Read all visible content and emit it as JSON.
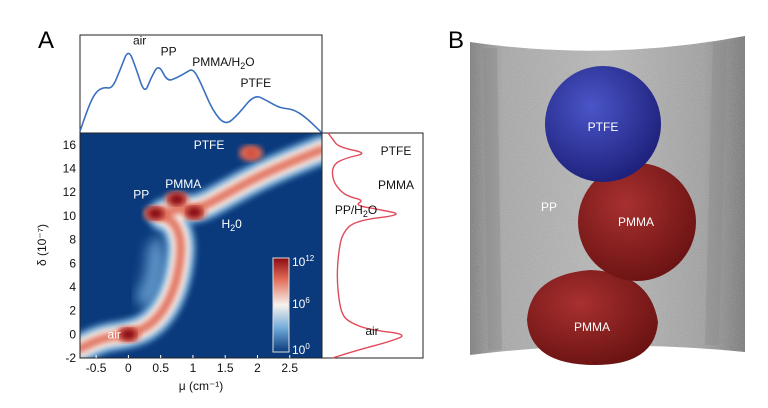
{
  "panels": {
    "a_label": "A",
    "b_label": "B"
  },
  "chart_data": [
    {
      "type": "heatmap",
      "panel": "A",
      "xlabel": "μ (cm⁻¹)",
      "ylabel": "δ (10⁻⁷)",
      "xlim": [
        -0.75,
        3.0
      ],
      "ylim": [
        -2,
        17
      ],
      "xticks": [
        "-0.5",
        "0",
        "0.5",
        "1",
        "1.5",
        "2",
        "2.5"
      ],
      "xtick_values": [
        -0.5,
        0,
        0.5,
        1,
        1.5,
        2,
        2.5
      ],
      "yticks": [
        "-2",
        "0",
        "2",
        "4",
        "6",
        "8",
        "10",
        "12",
        "14",
        "16"
      ],
      "ytick_values": [
        -2,
        0,
        2,
        4,
        6,
        8,
        10,
        12,
        14,
        16
      ],
      "colorbar": {
        "scale": "log",
        "labels": [
          {
            "base": "10",
            "exp": "12"
          },
          {
            "base": "10",
            "exp": "6"
          },
          {
            "base": "10",
            "exp": "0"
          }
        ]
      },
      "colors": {
        "background": "#0a3a7c",
        "low": "#6fa9d8",
        "mid": "#f7f2ee",
        "high": "#e06a55",
        "max": "#8b0a14"
      },
      "ridge": [
        [
          -0.75,
          -1.2
        ],
        [
          -0.4,
          -0.3
        ],
        [
          0,
          0
        ],
        [
          0.3,
          0.6
        ],
        [
          0.55,
          2
        ],
        [
          0.72,
          4
        ],
        [
          0.8,
          6
        ],
        [
          0.82,
          8
        ],
        [
          0.7,
          9.6
        ],
        [
          0.45,
          10.1
        ],
        [
          0.75,
          10.6
        ],
        [
          1.1,
          10.6
        ],
        [
          1.5,
          11.8
        ],
        [
          2.0,
          13.3
        ],
        [
          2.5,
          14.5
        ],
        [
          3.0,
          15.6
        ]
      ],
      "spread_region": [
        [
          0.1,
          3
        ],
        [
          0.25,
          5
        ],
        [
          0.3,
          7.5
        ],
        [
          0.5,
          8.5
        ],
        [
          0.6,
          6
        ],
        [
          0.5,
          3.5
        ],
        [
          0.3,
          2
        ]
      ],
      "hotspots": [
        {
          "label": "air",
          "mu": 0,
          "delta": 0,
          "level": "max"
        },
        {
          "label": "PP",
          "mu": 0.42,
          "delta": 10.2,
          "level": "max"
        },
        {
          "label": "PMMA",
          "mu": 0.75,
          "delta": 11.4,
          "level": "max"
        },
        {
          "label": "H2O",
          "mu": 1.02,
          "delta": 10.3,
          "level": "max"
        },
        {
          "label": "PTFE",
          "mu": 1.9,
          "delta": 15.3,
          "level": "high"
        }
      ],
      "annotations": [
        {
          "text": "PTFE",
          "mu": 1.25,
          "delta": 16.0
        },
        {
          "text": "PMMA",
          "mu": 0.85,
          "delta": 12.7
        },
        {
          "text": "PP",
          "mu": 0.2,
          "delta": 11.8
        },
        {
          "text": "H",
          "sub": "2",
          "tail": "0",
          "mu": 1.6,
          "delta": 9.3
        },
        {
          "text": "air",
          "mu": -0.22,
          "delta": 0
        }
      ]
    },
    {
      "type": "line",
      "panel": "A-top",
      "color": "#3a70c0",
      "x": [
        -0.75,
        -0.6,
        -0.5,
        -0.38,
        -0.25,
        -0.12,
        0,
        0.12,
        0.25,
        0.35,
        0.47,
        0.6,
        0.75,
        0.9,
        1.0,
        1.12,
        1.3,
        1.5,
        1.7,
        1.95,
        2.15,
        2.35,
        2.55,
        2.75,
        3.0
      ],
      "y": [
        0.02,
        0.32,
        0.45,
        0.5,
        0.48,
        0.7,
        0.92,
        0.7,
        0.42,
        0.6,
        0.75,
        0.56,
        0.6,
        0.66,
        0.7,
        0.55,
        0.25,
        0.08,
        0.2,
        0.42,
        0.35,
        0.27,
        0.26,
        0.17,
        0.0
      ],
      "xlim": [
        -0.75,
        3.0
      ],
      "ylim": [
        0,
        1
      ],
      "annotations": [
        {
          "text": "air",
          "mu": 0.05,
          "rel": 0.96
        },
        {
          "text": "PP",
          "mu": 0.5,
          "rel": 0.84
        },
        {
          "text": "PMMA/H",
          "sub": "2",
          "tail": "O",
          "mu": 1.1,
          "rel": 0.73
        },
        {
          "text": "PTFE",
          "mu": 1.85,
          "rel": 0.5
        }
      ]
    },
    {
      "type": "line",
      "panel": "A-right",
      "color": "#e04a5a",
      "orientation": "vertical",
      "delta": [
        -2,
        -1.3,
        -0.6,
        0,
        0.4,
        1,
        1.6,
        3,
        5,
        7,
        8.5,
        9.6,
        10.1,
        10.5,
        10.9,
        11.3,
        11.6,
        12,
        13,
        14.3,
        14.9,
        15.3,
        15.8,
        16.5,
        17
      ],
      "y": [
        0.05,
        0.35,
        0.7,
        0.9,
        0.45,
        0.25,
        0.16,
        0.12,
        0.1,
        0.12,
        0.16,
        0.3,
        0.85,
        0.6,
        0.3,
        0.4,
        0.25,
        0.15,
        0.05,
        0.05,
        0.2,
        0.45,
        0.12,
        0.05,
        0.0
      ],
      "ylim": [
        -2,
        17
      ],
      "annotations": [
        {
          "text": "PTFE",
          "delta": 15.5
        },
        {
          "text": "PMMA",
          "delta": 12.6
        },
        {
          "text": "PP/H",
          "sub": "2",
          "tail": "O",
          "delta": 10.5
        },
        {
          "text": "air",
          "delta": 0.3
        }
      ]
    }
  ],
  "panel_b": {
    "labels": {
      "ptfe": "PTFE",
      "pmma_top": "PMMA",
      "pmma_bottom": "PMMA",
      "pp": "PP"
    },
    "colors": {
      "tube": "#9a9a9a",
      "ptfe": "#2a2f9a",
      "pmma": "#8a1c1c"
    }
  }
}
